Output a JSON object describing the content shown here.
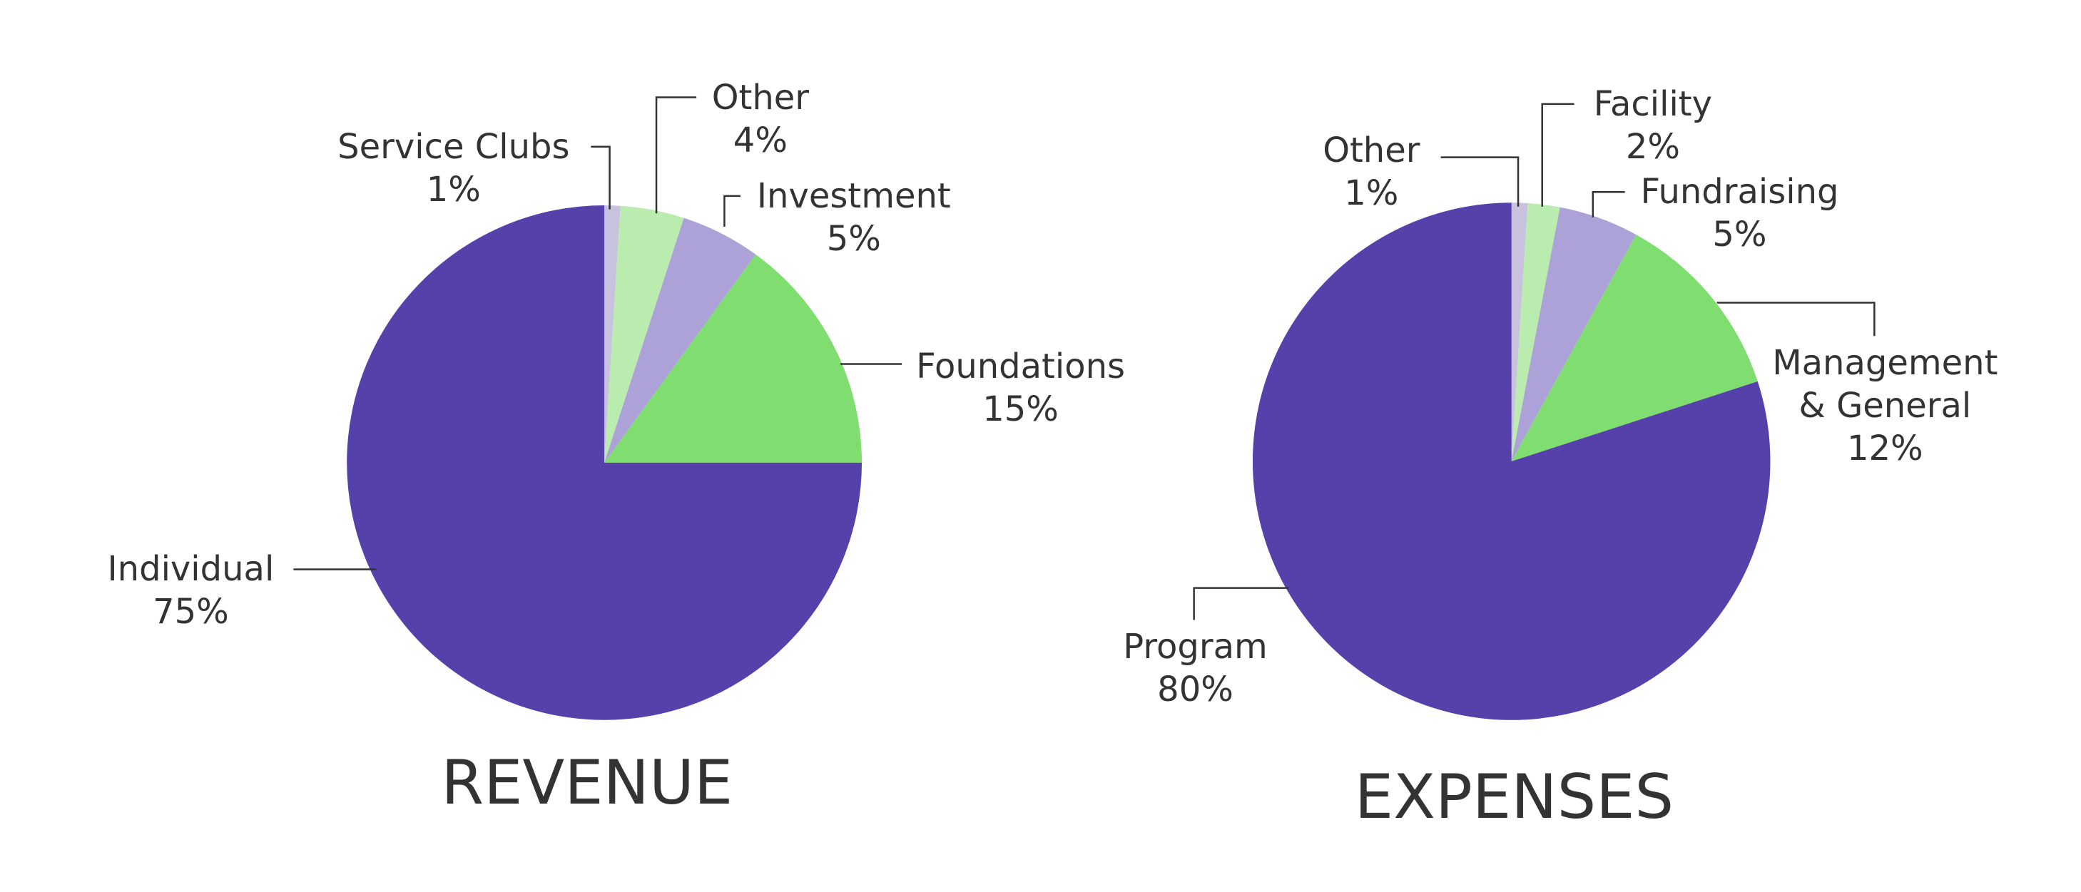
{
  "chart_data": [
    {
      "type": "pie",
      "title": "REVENUE",
      "categories": [
        "Service Clubs",
        "Other",
        "Investment",
        "Foundations",
        "Individual"
      ],
      "values": [
        1,
        4,
        5,
        15,
        75
      ],
      "value_labels": [
        "1%",
        "4%",
        "5%",
        "15%",
        "75%"
      ],
      "colors": [
        "#c9c2de",
        "#b9ecae",
        "#aca2d7",
        "#80de70",
        "#5541a9"
      ]
    },
    {
      "type": "pie",
      "title": "EXPENSES",
      "categories": [
        "Other",
        "Facility",
        "Fundraising",
        "Management & General",
        "Program"
      ],
      "values": [
        1,
        2,
        5,
        12,
        80
      ],
      "value_labels": [
        "1%",
        "2%",
        "5%",
        "12%",
        "80%"
      ],
      "colors": [
        "#c9c2de",
        "#b9ecae",
        "#aca2d7",
        "#80de70",
        "#5541a9"
      ]
    }
  ]
}
